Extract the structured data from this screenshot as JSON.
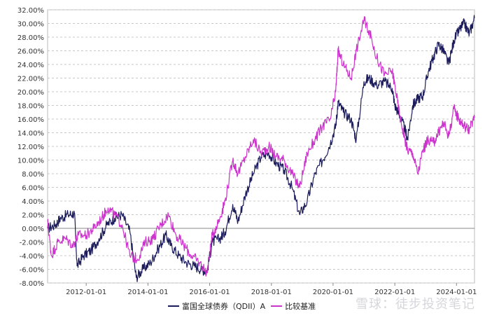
{
  "chart_data": {
    "type": "line",
    "title": "",
    "xlabel": "",
    "ylabel": "",
    "ylim": [
      -8,
      32
    ],
    "xlim": [
      "2010-10-01",
      "2024-08-01"
    ],
    "grid": true,
    "legend_position": "bottom",
    "y_ticks": [
      "-8.00%",
      "-6.00%",
      "-4.00%",
      "-2.00%",
      "0.00%",
      "2.00%",
      "4.00%",
      "6.00%",
      "8.00%",
      "10.00%",
      "12.00%",
      "14.00%",
      "16.00%",
      "18.00%",
      "20.00%",
      "22.00%",
      "24.00%",
      "26.00%",
      "28.00%",
      "30.00%",
      "32.00%"
    ],
    "x_ticks": [
      "2012-01-01",
      "2014-01-01",
      "2016-01-01",
      "2018-01-01",
      "2020-01-01",
      "2022-01-01",
      "2024-01-01"
    ],
    "series": [
      {
        "name": "富国全球债券（QDII）A",
        "color": "#1c1c5c",
        "points": [
          [
            "2010-10-01",
            0.0
          ],
          [
            "2011-01-01",
            0.5
          ],
          [
            "2011-03-01",
            1.5
          ],
          [
            "2011-06-01",
            2.0
          ],
          [
            "2011-08-15",
            2.2
          ],
          [
            "2011-09-15",
            -5.5
          ],
          [
            "2011-12-01",
            -4.0
          ],
          [
            "2012-03-01",
            -3.2
          ],
          [
            "2012-06-01",
            -1.5
          ],
          [
            "2012-09-01",
            0.5
          ],
          [
            "2012-12-01",
            1.5
          ],
          [
            "2013-03-01",
            2.0
          ],
          [
            "2013-06-01",
            -0.5
          ],
          [
            "2013-08-15",
            -7.2
          ],
          [
            "2013-11-01",
            -6.0
          ],
          [
            "2014-02-01",
            -5.0
          ],
          [
            "2014-05-01",
            -3.0
          ],
          [
            "2014-08-01",
            -1.0
          ],
          [
            "2014-10-01",
            -2.5
          ],
          [
            "2015-01-01",
            -4.0
          ],
          [
            "2015-04-01",
            -5.0
          ],
          [
            "2015-07-01",
            -5.5
          ],
          [
            "2015-10-01",
            -6.0
          ],
          [
            "2015-12-01",
            -6.3
          ],
          [
            "2016-02-01",
            -2.0
          ],
          [
            "2016-05-01",
            -1.5
          ],
          [
            "2016-07-01",
            -0.5
          ],
          [
            "2016-10-01",
            3.5
          ],
          [
            "2016-12-01",
            1.0
          ],
          [
            "2017-03-01",
            5.0
          ],
          [
            "2017-06-01",
            8.0
          ],
          [
            "2017-09-01",
            10.5
          ],
          [
            "2017-12-01",
            11.0
          ],
          [
            "2018-03-01",
            9.5
          ],
          [
            "2018-06-01",
            8.5
          ],
          [
            "2018-09-01",
            6.0
          ],
          [
            "2018-12-01",
            2.0
          ],
          [
            "2019-03-01",
            4.0
          ],
          [
            "2019-06-01",
            8.0
          ],
          [
            "2019-09-01",
            10.0
          ],
          [
            "2019-12-01",
            12.5
          ],
          [
            "2020-02-01",
            15.0
          ],
          [
            "2020-03-01",
            18.5
          ],
          [
            "2020-05-01",
            17.0
          ],
          [
            "2020-08-01",
            16.0
          ],
          [
            "2020-10-01",
            13.0
          ],
          [
            "2021-01-01",
            21.5
          ],
          [
            "2021-03-01",
            22.0
          ],
          [
            "2021-06-01",
            21.0
          ],
          [
            "2021-09-01",
            21.5
          ],
          [
            "2021-12-01",
            20.5
          ],
          [
            "2022-01-01",
            18.0
          ],
          [
            "2022-03-01",
            16.5
          ],
          [
            "2022-05-01",
            14.5
          ],
          [
            "2022-06-01",
            13.0
          ],
          [
            "2022-08-01",
            18.0
          ],
          [
            "2022-10-01",
            19.0
          ],
          [
            "2022-12-01",
            19.5
          ],
          [
            "2023-02-01",
            23.0
          ],
          [
            "2023-04-01",
            25.0
          ],
          [
            "2023-06-01",
            27.0
          ],
          [
            "2023-08-01",
            26.0
          ],
          [
            "2023-10-01",
            24.0
          ],
          [
            "2023-12-01",
            27.5
          ],
          [
            "2024-02-01",
            29.0
          ],
          [
            "2024-04-01",
            30.0
          ],
          [
            "2024-06-01",
            28.5
          ],
          [
            "2024-08-01",
            30.8
          ]
        ]
      },
      {
        "name": "比较基准",
        "color": "#cc33cc",
        "points": [
          [
            "2010-10-01",
            1.0
          ],
          [
            "2010-11-15",
            -4.0
          ],
          [
            "2011-02-01",
            -2.0
          ],
          [
            "2011-05-01",
            -1.5
          ],
          [
            "2011-08-01",
            -2.5
          ],
          [
            "2011-10-01",
            -1.0
          ],
          [
            "2012-01-01",
            -1.0
          ],
          [
            "2012-04-01",
            0.0
          ],
          [
            "2012-07-01",
            1.5
          ],
          [
            "2012-09-15",
            3.0
          ],
          [
            "2012-12-01",
            2.0
          ],
          [
            "2013-03-01",
            0.5
          ],
          [
            "2013-06-01",
            -4.0
          ],
          [
            "2013-09-01",
            -4.5
          ],
          [
            "2013-12-01",
            -2.0
          ],
          [
            "2014-03-01",
            -1.5
          ],
          [
            "2014-06-01",
            0.5
          ],
          [
            "2014-09-01",
            2.0
          ],
          [
            "2014-12-01",
            -1.0
          ],
          [
            "2015-03-01",
            -2.5
          ],
          [
            "2015-06-01",
            -4.0
          ],
          [
            "2015-09-01",
            -5.0
          ],
          [
            "2015-12-01",
            -6.5
          ],
          [
            "2016-02-01",
            -1.0
          ],
          [
            "2016-05-01",
            1.5
          ],
          [
            "2016-07-01",
            4.0
          ],
          [
            "2016-10-01",
            10.0
          ],
          [
            "2016-12-01",
            8.0
          ],
          [
            "2017-03-01",
            10.5
          ],
          [
            "2017-06-01",
            13.0
          ],
          [
            "2017-09-01",
            11.0
          ],
          [
            "2017-12-01",
            12.0
          ],
          [
            "2018-03-01",
            10.5
          ],
          [
            "2018-06-01",
            10.0
          ],
          [
            "2018-09-01",
            8.0
          ],
          [
            "2018-12-01",
            6.0
          ],
          [
            "2019-03-01",
            11.0
          ],
          [
            "2019-06-01",
            13.0
          ],
          [
            "2019-09-01",
            15.0
          ],
          [
            "2019-12-01",
            16.0
          ],
          [
            "2020-02-01",
            20.0
          ],
          [
            "2020-03-01",
            26.0
          ],
          [
            "2020-05-01",
            24.0
          ],
          [
            "2020-08-01",
            22.0
          ],
          [
            "2020-10-01",
            26.0
          ],
          [
            "2021-01-01",
            30.5
          ],
          [
            "2021-03-01",
            29.0
          ],
          [
            "2021-06-01",
            25.0
          ],
          [
            "2021-09-01",
            22.5
          ],
          [
            "2021-12-01",
            23.0
          ],
          [
            "2022-01-01",
            21.0
          ],
          [
            "2022-03-01",
            16.5
          ],
          [
            "2022-05-01",
            13.0
          ],
          [
            "2022-06-01",
            11.5
          ],
          [
            "2022-08-01",
            11.0
          ],
          [
            "2022-10-01",
            8.0
          ],
          [
            "2022-12-01",
            11.5
          ],
          [
            "2023-02-01",
            13.0
          ],
          [
            "2023-04-01",
            12.5
          ],
          [
            "2023-06-01",
            14.0
          ],
          [
            "2023-08-01",
            15.5
          ],
          [
            "2023-10-01",
            13.5
          ],
          [
            "2023-12-01",
            17.5
          ],
          [
            "2024-02-01",
            16.0
          ],
          [
            "2024-04-01",
            15.0
          ],
          [
            "2024-06-01",
            14.5
          ],
          [
            "2024-08-01",
            16.2
          ]
        ]
      }
    ]
  },
  "watermark": "雪球：徒步投资笔记"
}
